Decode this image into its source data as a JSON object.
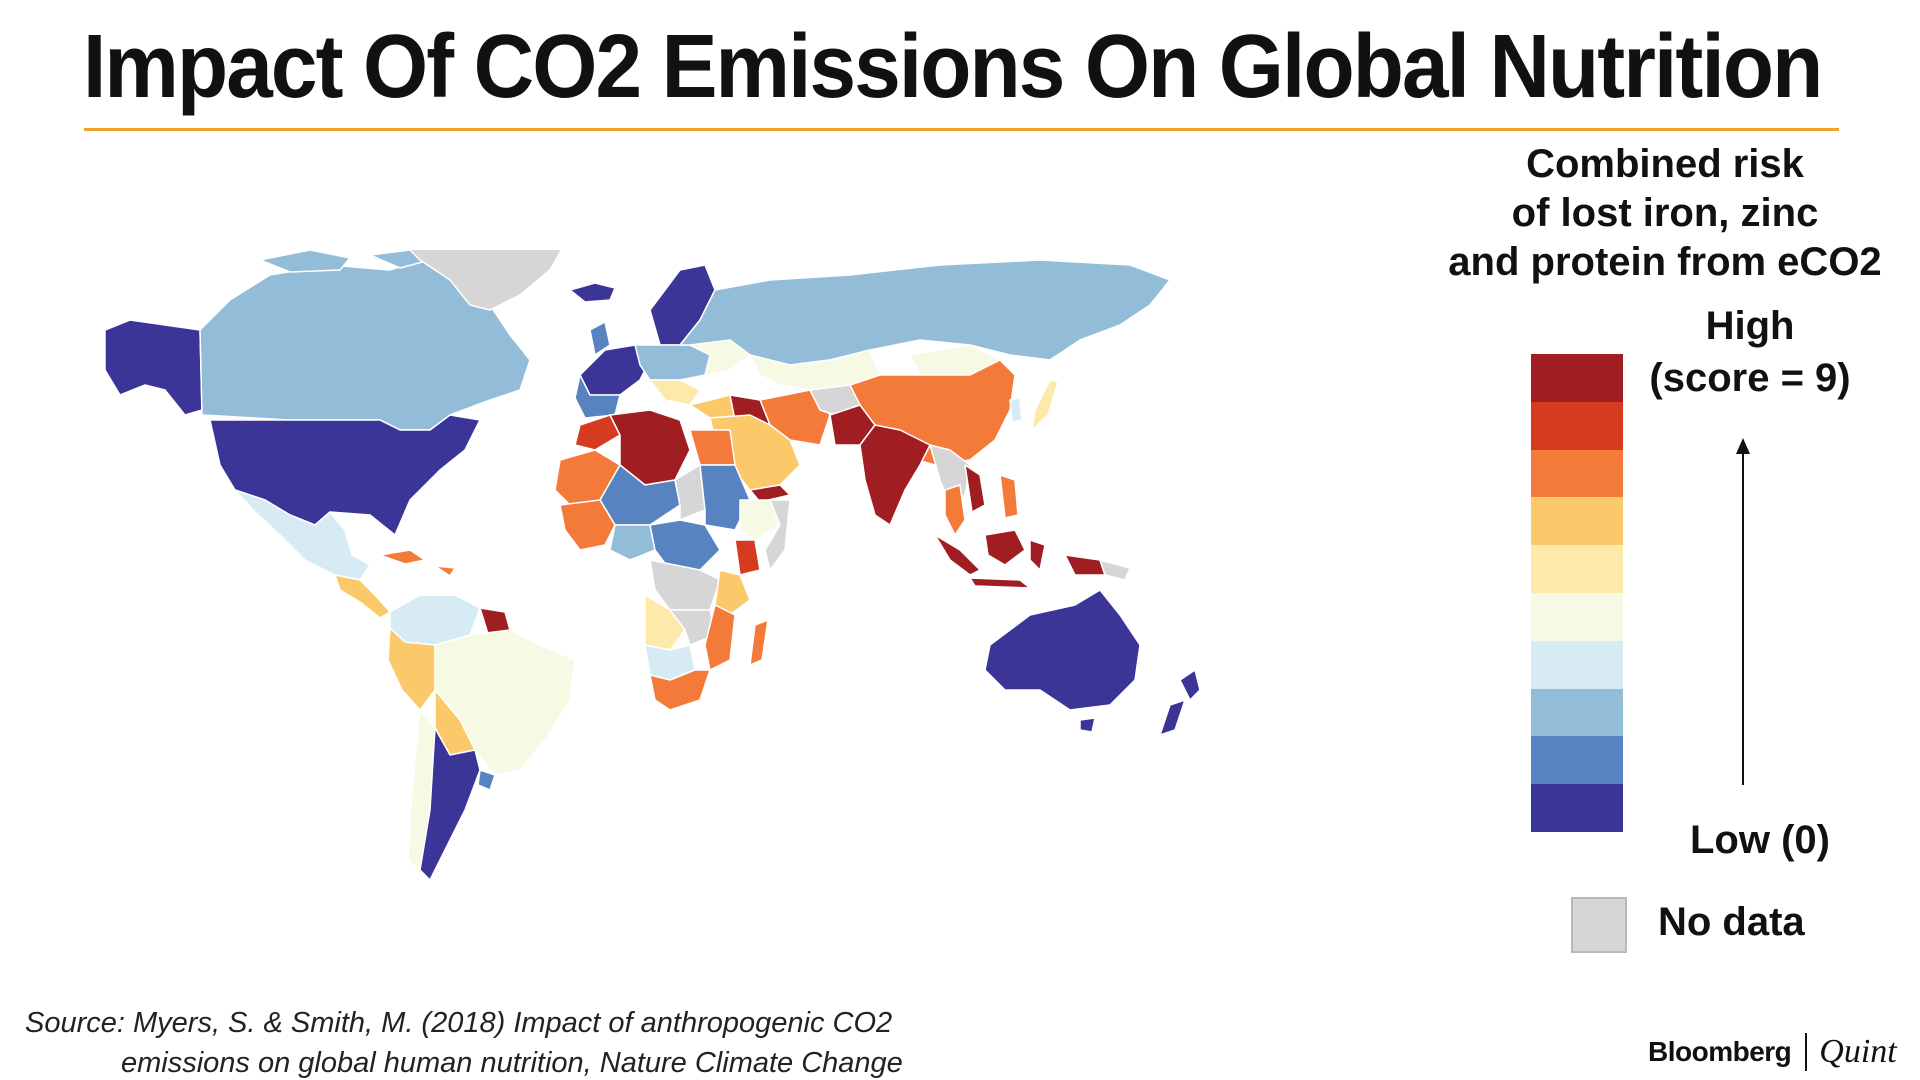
{
  "title": "Impact Of CO2 Emissions On Global Nutrition",
  "legend": {
    "title_lines": [
      "Combined risk",
      "of lost iron, zinc",
      "and protein from eCO2"
    ],
    "high_label": "High",
    "high_score": "(score = 9)",
    "low_label": "Low (0)",
    "no_data_label": "No data",
    "scale_colors": [
      "#a01d22",
      "#d63b1f",
      "#f47a3a",
      "#fcc96a",
      "#fde9a9",
      "#f6f9e4",
      "#d6ebf4",
      "#92bcd8",
      "#5784c1",
      "#3b3597"
    ],
    "no_data_color": "#d6d6d6"
  },
  "source": {
    "line1": "Source: Myers, S. & Smith, M. (2018) Impact of anthropogenic CO2",
    "line2": "emissions on global human nutrition, Nature Climate Change"
  },
  "brand": {
    "left": "Bloomberg",
    "right": "Quint"
  }
}
